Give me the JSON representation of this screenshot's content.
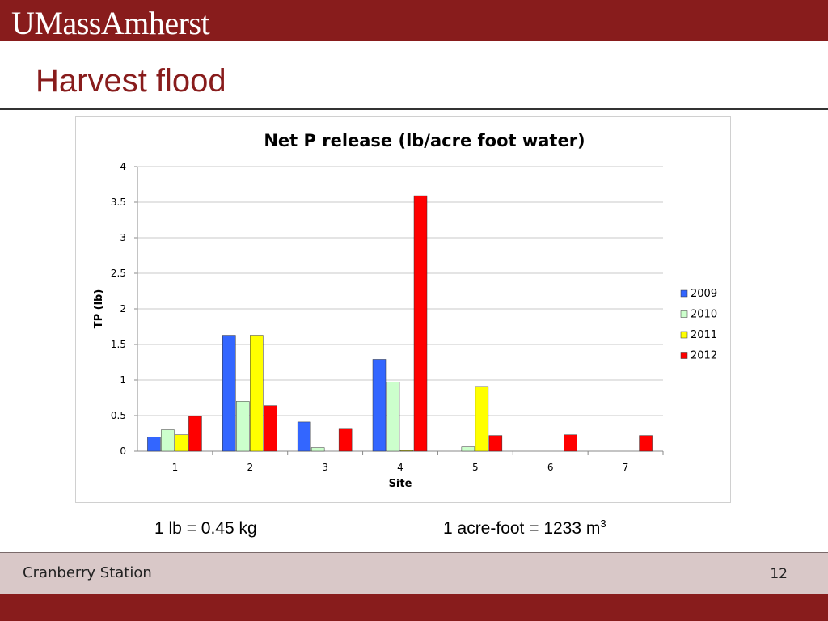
{
  "header": {
    "logo_text": "UMassAmherst",
    "brand_color": "#881c1c"
  },
  "slide": {
    "title": "Harvest flood"
  },
  "chart_data": {
    "type": "bar",
    "title": "Net P release (lb/acre foot water)",
    "xlabel": "Site",
    "ylabel": "TP (lb)",
    "categories": [
      "1",
      "2",
      "3",
      "4",
      "5",
      "6",
      "7"
    ],
    "ylim": [
      0,
      4
    ],
    "yticks": [
      "0",
      "0.5",
      "1",
      "1.5",
      "2",
      "2.5",
      "3",
      "3.5",
      "4"
    ],
    "grid": true,
    "legend_position": "right",
    "series": [
      {
        "name": "2009",
        "color": "#3366ff",
        "values": [
          0.2,
          1.63,
          0.41,
          1.29,
          null,
          null,
          null
        ]
      },
      {
        "name": "2010",
        "color": "#ccffcc",
        "values": [
          0.3,
          0.7,
          0.05,
          0.97,
          0.06,
          null,
          null
        ]
      },
      {
        "name": "2011",
        "color": "#ffff00",
        "values": [
          0.23,
          1.63,
          null,
          0.01,
          0.91,
          null,
          null
        ]
      },
      {
        "name": "2012",
        "color": "#ff0000",
        "values": [
          0.49,
          0.64,
          0.32,
          3.59,
          0.22,
          0.23,
          0.22
        ]
      }
    ]
  },
  "conversions": {
    "mass": "1 lb = 0.45 kg",
    "volume_text": "1 acre-foot = 1233 m",
    "volume_exponent": "3"
  },
  "footer": {
    "left": "Cranberry Station",
    "page_number": "12"
  }
}
